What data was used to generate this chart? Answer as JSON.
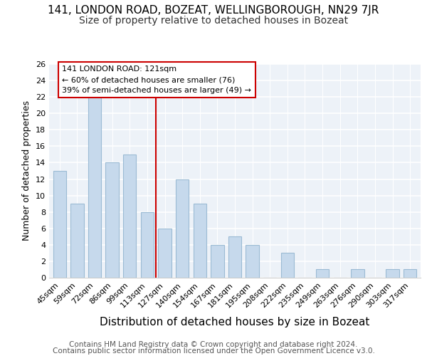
{
  "title1": "141, LONDON ROAD, BOZEAT, WELLINGBOROUGH, NN29 7JR",
  "title2": "Size of property relative to detached houses in Bozeat",
  "xlabel": "Distribution of detached houses by size in Bozeat",
  "ylabel": "Number of detached properties",
  "footer_line1": "Contains HM Land Registry data © Crown copyright and database right 2024.",
  "footer_line2": "Contains public sector information licensed under the Open Government Licence v3.0.",
  "categories": [
    "45sqm",
    "59sqm",
    "72sqm",
    "86sqm",
    "99sqm",
    "113sqm",
    "127sqm",
    "140sqm",
    "154sqm",
    "167sqm",
    "181sqm",
    "195sqm",
    "208sqm",
    "222sqm",
    "235sqm",
    "249sqm",
    "263sqm",
    "276sqm",
    "290sqm",
    "303sqm",
    "317sqm"
  ],
  "values": [
    13,
    9,
    22,
    14,
    15,
    8,
    6,
    12,
    9,
    4,
    5,
    4,
    0,
    3,
    0,
    1,
    0,
    1,
    0,
    1,
    1
  ],
  "bar_color": "#c6d9ec",
  "bar_edge_color": "#9bbbd4",
  "red_line_x": 5.5,
  "annotation_line1": "141 LONDON ROAD: 121sqm",
  "annotation_line2": "← 60% of detached houses are smaller (76)",
  "annotation_line3": "39% of semi-detached houses are larger (49) →",
  "annotation_box_color": "#ffffff",
  "annotation_box_edge_color": "#cc0000",
  "ylim": [
    0,
    26
  ],
  "yticks": [
    0,
    2,
    4,
    6,
    8,
    10,
    12,
    14,
    16,
    18,
    20,
    22,
    24,
    26
  ],
  "bg_color": "#edf2f8",
  "grid_color": "#ffffff",
  "title1_fontsize": 11,
  "title2_fontsize": 10,
  "xlabel_fontsize": 11,
  "ylabel_fontsize": 9,
  "tick_fontsize": 8,
  "footer_fontsize": 7.5,
  "bar_width": 0.75
}
